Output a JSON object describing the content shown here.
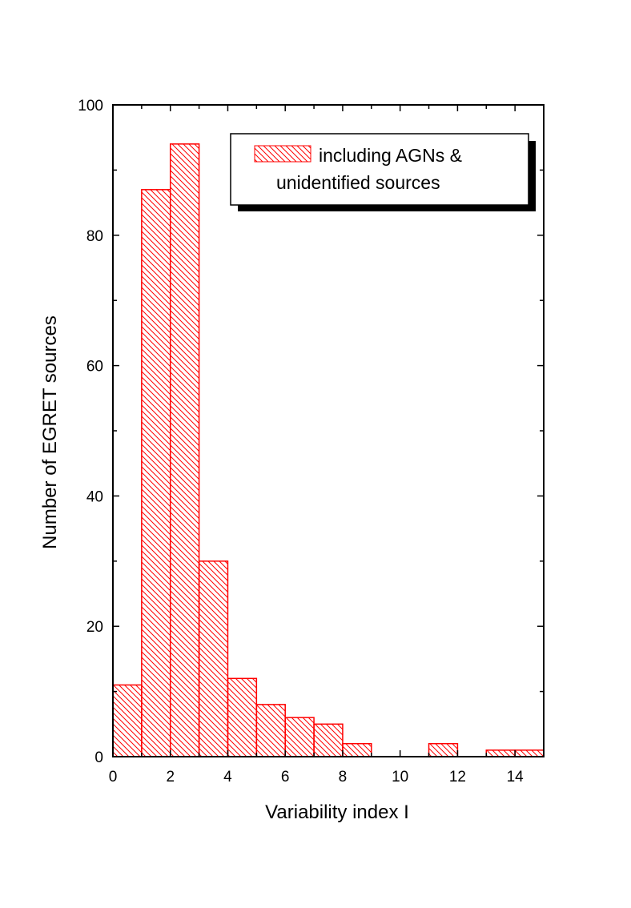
{
  "chart_data": {
    "type": "bar",
    "subtype": "histogram",
    "xlabel": "Variability index I",
    "ylabel": "Number of EGRET sources",
    "xlim": [
      0,
      15
    ],
    "ylim": [
      0,
      100
    ],
    "x_ticks": [
      "0",
      "2",
      "4",
      "6",
      "8",
      "10",
      "12",
      "14"
    ],
    "y_ticks": [
      "0",
      "20",
      "40",
      "60",
      "80",
      "100"
    ],
    "bin_width": 1,
    "bins": [
      {
        "start": 0,
        "end": 1,
        "value": 11
      },
      {
        "start": 1,
        "end": 2,
        "value": 87
      },
      {
        "start": 2,
        "end": 3,
        "value": 94
      },
      {
        "start": 3,
        "end": 4,
        "value": 30
      },
      {
        "start": 4,
        "end": 5,
        "value": 12
      },
      {
        "start": 5,
        "end": 6,
        "value": 8
      },
      {
        "start": 6,
        "end": 7,
        "value": 6
      },
      {
        "start": 7,
        "end": 8,
        "value": 5
      },
      {
        "start": 8,
        "end": 9,
        "value": 2
      },
      {
        "start": 9,
        "end": 10,
        "value": 0
      },
      {
        "start": 10,
        "end": 11,
        "value": 0
      },
      {
        "start": 11,
        "end": 12,
        "value": 2
      },
      {
        "start": 12,
        "end": 13,
        "value": 0
      },
      {
        "start": 13,
        "end": 14,
        "value": 1
      },
      {
        "start": 14,
        "end": 15,
        "value": 1
      }
    ],
    "legend": {
      "line1": "including AGNs &",
      "line2": "unidentified sources",
      "placement": "top-right"
    },
    "colors": {
      "bar": "#ff0000",
      "axis": "#000000"
    },
    "fill_pattern": "diagonal-hatch",
    "grid": false
  }
}
